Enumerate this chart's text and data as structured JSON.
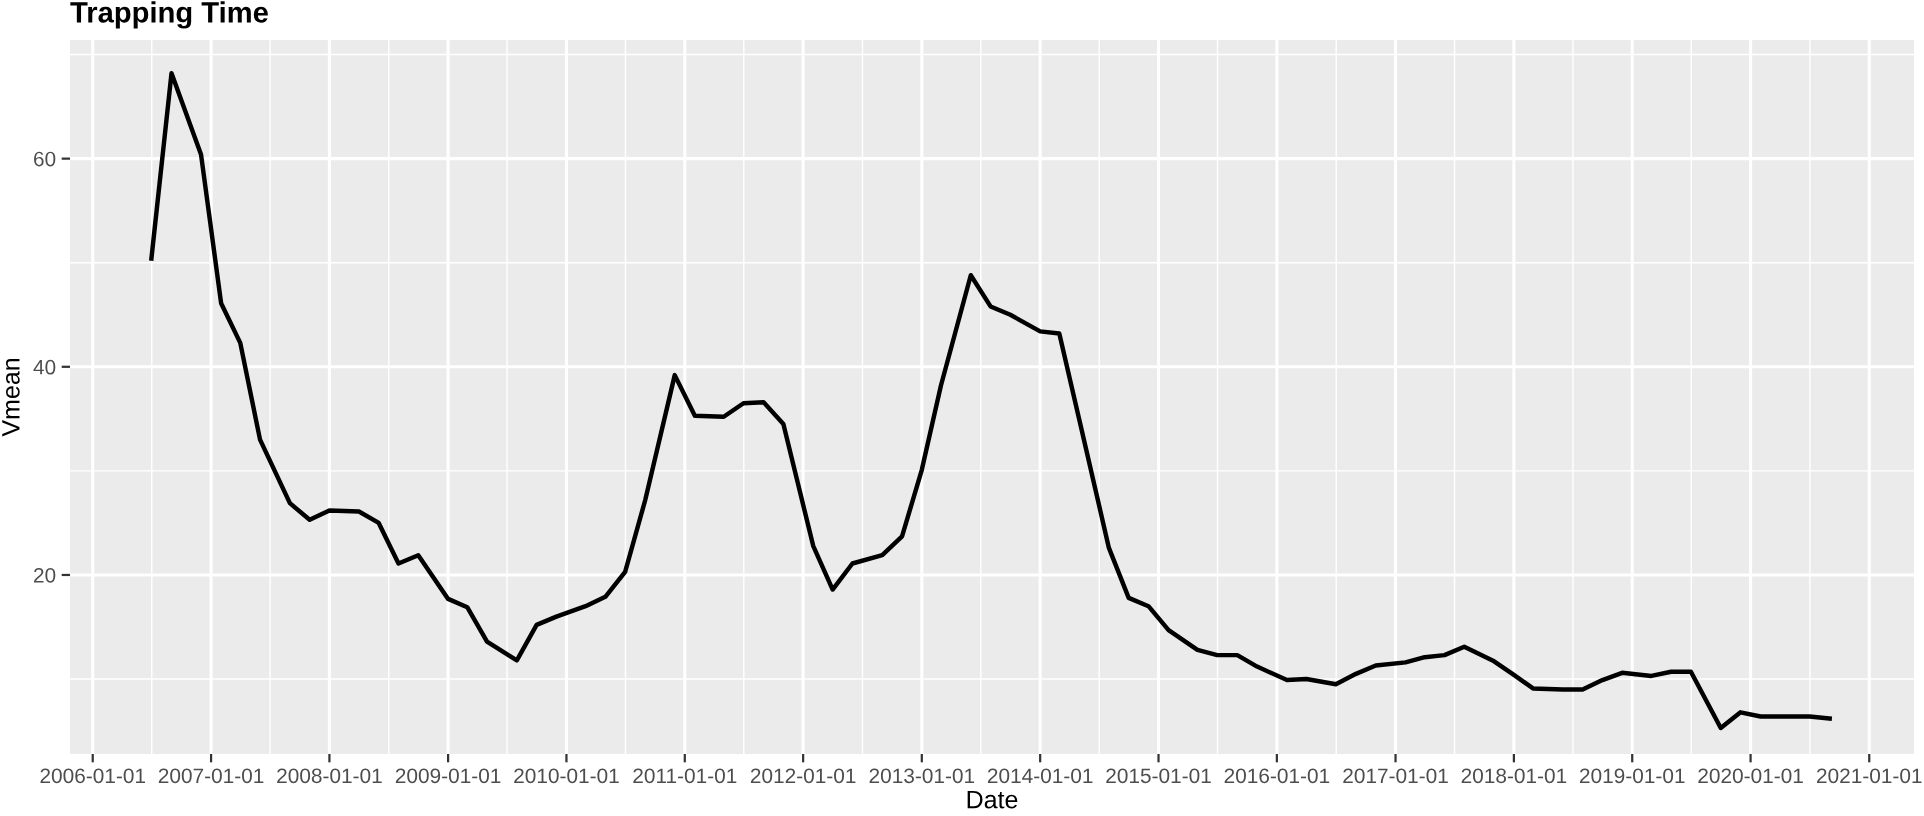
{
  "chart_data": {
    "type": "line",
    "title": "Trapping Time",
    "xlabel": "Date",
    "ylabel": "Vmean",
    "x": [
      "2006-07",
      "2006-09",
      "2006-12",
      "2007-02",
      "2007-04",
      "2007-06",
      "2007-09",
      "2007-11",
      "2008-01",
      "2008-04",
      "2008-06",
      "2008-08",
      "2008-10",
      "2009-01",
      "2009-03",
      "2009-05",
      "2009-08",
      "2009-10",
      "2009-12",
      "2010-03",
      "2010-05",
      "2010-07",
      "2010-09",
      "2010-12",
      "2011-02",
      "2011-05",
      "2011-07",
      "2011-09",
      "2011-11",
      "2012-02",
      "2012-04",
      "2012-06",
      "2012-09",
      "2012-11",
      "2013-01",
      "2013-03",
      "2013-06",
      "2013-08",
      "2013-10",
      "2014-01",
      "2014-03",
      "2014-05",
      "2014-08",
      "2014-10",
      "2014-12",
      "2015-02",
      "2015-05",
      "2015-07",
      "2015-09",
      "2015-11",
      "2016-02",
      "2016-04",
      "2016-07",
      "2016-09",
      "2016-11",
      "2017-02",
      "2017-04",
      "2017-06",
      "2017-08",
      "2017-11",
      "2018-01",
      "2018-03",
      "2018-06",
      "2018-08",
      "2018-10",
      "2018-12",
      "2019-03",
      "2019-05",
      "2019-07",
      "2019-10",
      "2019-12",
      "2020-02",
      "2020-07",
      "2020-09"
    ],
    "series": [
      {
        "color": "#000000",
        "values": [
          50.4,
          68.2,
          60.4,
          46.1,
          42.3,
          33.0,
          26.9,
          25.3,
          26.2,
          26.1,
          25.0,
          21.1,
          21.9,
          17.7,
          16.9,
          13.6,
          11.8,
          15.2,
          16.0,
          17.0,
          17.9,
          20.3,
          27.2,
          39.2,
          35.3,
          35.2,
          36.5,
          36.6,
          34.5,
          22.8,
          18.6,
          21.1,
          21.9,
          23.7,
          30.1,
          38.2,
          48.8,
          45.8,
          45.0,
          43.4,
          43.2,
          35.0,
          22.6,
          17.8,
          17.0,
          14.7,
          12.8,
          12.3,
          12.3,
          11.2,
          9.9,
          10.0,
          9.5,
          10.5,
          11.3,
          11.6,
          12.1,
          12.3,
          13.1,
          11.7,
          10.4,
          9.1,
          9.0,
          9.0,
          9.9,
          10.6,
          10.3,
          10.7,
          10.7,
          5.3,
          6.8,
          6.4,
          6.4,
          6.2
        ]
      }
    ],
    "xlim": [
      "2005-10-23",
      "2021-05-19"
    ],
    "xticks": [
      "2006-01-01",
      {
        "value": "2006-07-02",
        "label": null
      },
      "2007-01-01",
      {
        "value": "2007-07-02",
        "label": null
      },
      "2008-01-01",
      {
        "value": "2008-07-02",
        "label": null
      },
      "2009-01-01",
      {
        "value": "2009-07-02",
        "label": null
      },
      "2010-01-01",
      {
        "value": "2010-07-02",
        "label": null
      },
      "2011-01-01",
      {
        "value": "2011-07-02",
        "label": null
      },
      "2012-01-01",
      {
        "value": "2012-07-02",
        "label": null
      },
      "2013-01-01",
      {
        "value": "2013-07-02",
        "label": null
      },
      "2014-01-01",
      {
        "value": "2014-07-02",
        "label": null
      },
      "2015-01-01",
      {
        "value": "2015-07-02",
        "label": null
      },
      "2016-01-01",
      {
        "value": "2016-07-02",
        "label": null
      },
      "2017-01-01",
      {
        "value": "2017-07-02",
        "label": null
      },
      "2018-01-01",
      {
        "value": "2018-07-02",
        "label": null
      },
      "2019-01-01",
      {
        "value": "2019-07-02",
        "label": null
      },
      "2020-01-01",
      {
        "value": "2020-07-02",
        "label": null
      },
      "2021-01-01"
    ],
    "ylim": [
      2.8,
      71.4
    ],
    "yticks": [
      {
        "value": 10,
        "label": null
      },
      20,
      {
        "value": 30,
        "label": null
      },
      40,
      {
        "value": 50,
        "label": null
      },
      60,
      {
        "value": 70,
        "label": null
      }
    ],
    "grid": true,
    "marker": "none",
    "line_style": "solid"
  }
}
